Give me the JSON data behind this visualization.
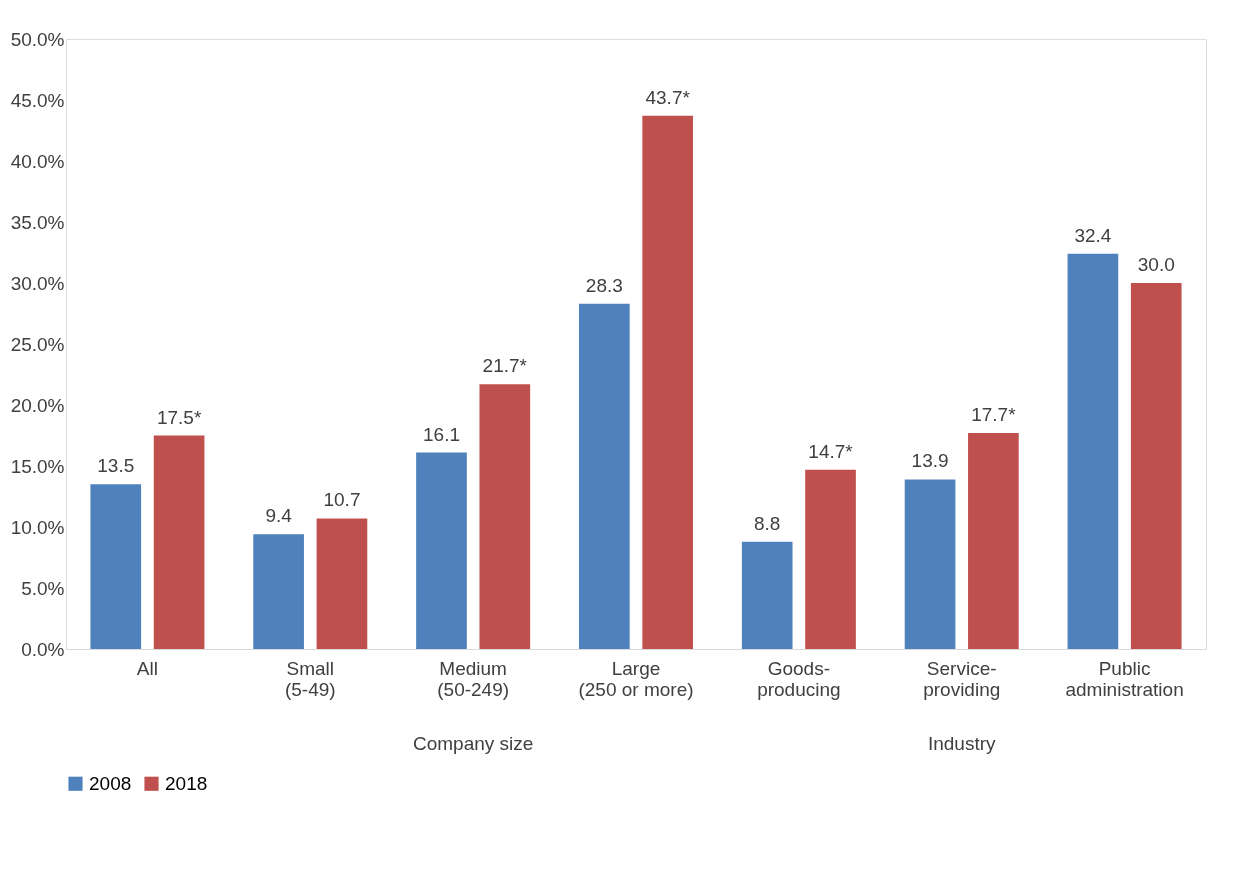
{
  "chart_data": {
    "type": "bar",
    "categories": [
      "All",
      "Small\n(5-49)",
      "Medium\n(50-249)",
      "Large\n(250 or more)",
      "Goods-\nproducing",
      "Service-\nproviding",
      "Public\nadministration"
    ],
    "series": [
      {
        "name": "2008",
        "color": "#4f81bd",
        "values": [
          13.5,
          9.4,
          16.1,
          28.3,
          8.8,
          13.9,
          32.4
        ],
        "value_labels": [
          "13.5",
          "9.4",
          "16.1",
          "28.3",
          "8.8",
          "13.9",
          "32.4"
        ]
      },
      {
        "name": "2018",
        "color": "#c0504d",
        "values": [
          17.5,
          10.7,
          21.7,
          43.7,
          14.7,
          17.7,
          30.0
        ],
        "value_labels": [
          "17.5*",
          "10.7",
          "21.7*",
          "43.7*",
          "14.7*",
          "17.7*",
          "30.0"
        ]
      }
    ],
    "ylim": [
      0,
      50
    ],
    "yticks": [
      {
        "value": 0,
        "label": "0.0%"
      },
      {
        "value": 5,
        "label": "5.0%"
      },
      {
        "value": 10,
        "label": "10.0%"
      },
      {
        "value": 15,
        "label": "15.0%"
      },
      {
        "value": 20,
        "label": "20.0%"
      },
      {
        "value": 25,
        "label": "25.0%"
      },
      {
        "value": 30,
        "label": "30.0%"
      },
      {
        "value": 35,
        "label": "35.0%"
      },
      {
        "value": 40,
        "label": "40.0%"
      },
      {
        "value": 45,
        "label": "45.0%"
      },
      {
        "value": 50,
        "label": "50.0%"
      }
    ],
    "annotations": [
      "Company size",
      "Industry"
    ],
    "grid": false,
    "legend": "bottom"
  }
}
